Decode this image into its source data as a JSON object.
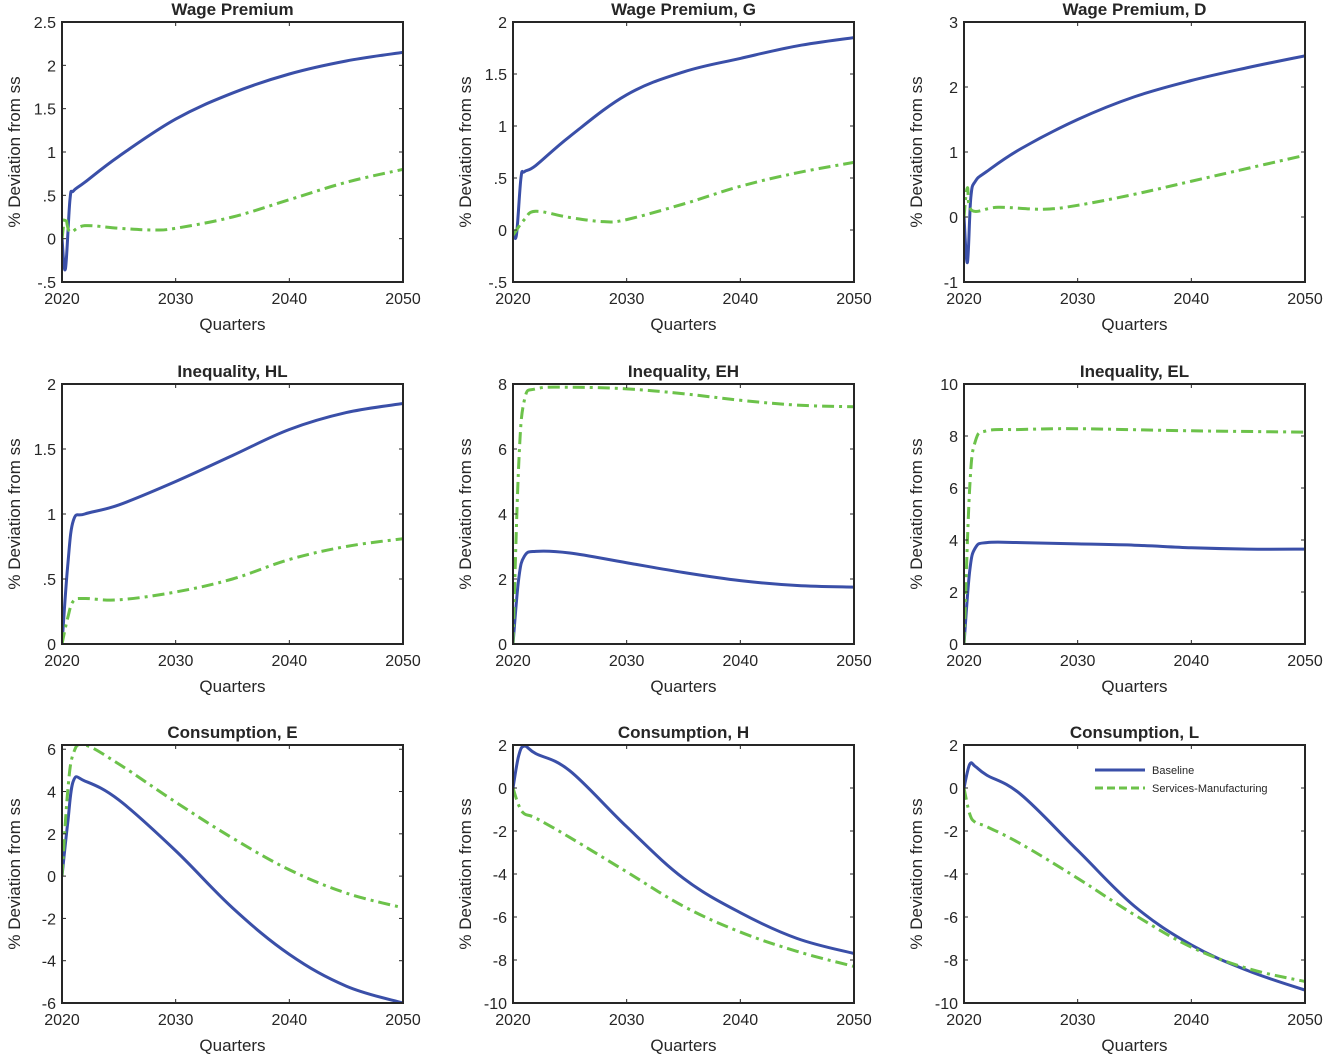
{
  "chart_data": [
    {
      "type": "line",
      "title": "Wage Premium",
      "xlabel": "Quarters",
      "ylabel": "% Deviation from ss",
      "xlim": [
        2020,
        2050
      ],
      "ylim": [
        -0.5,
        2.5
      ],
      "xticks": [
        2020,
        2030,
        2040,
        2050
      ],
      "yticks": [
        -0.5,
        0,
        0.5,
        1,
        1.5,
        2,
        2.5
      ],
      "grid": false,
      "series": [
        {
          "name": "Baseline",
          "x": [
            2020,
            2020.3,
            2020.7,
            2021,
            2022,
            2025,
            2030,
            2035,
            2040,
            2045,
            2050
          ],
          "y": [
            0,
            -0.35,
            0.45,
            0.55,
            0.65,
            0.95,
            1.38,
            1.68,
            1.9,
            2.05,
            2.15
          ]
        },
        {
          "name": "Services-Manufacturing",
          "x": [
            2020,
            2020.3,
            2020.7,
            2022,
            2025,
            2028,
            2030,
            2035,
            2040,
            2045,
            2050
          ],
          "y": [
            0,
            0.25,
            0.08,
            0.15,
            0.12,
            0.1,
            0.12,
            0.25,
            0.45,
            0.65,
            0.8
          ]
        }
      ]
    },
    {
      "type": "line",
      "title": "Wage Premium, G",
      "xlabel": "Quarters",
      "ylabel": "% Deviation from ss",
      "xlim": [
        2020,
        2050
      ],
      "ylim": [
        -0.5,
        2
      ],
      "xticks": [
        2020,
        2030,
        2040,
        2050
      ],
      "yticks": [
        -0.5,
        0,
        0.5,
        1,
        1.5,
        2
      ],
      "grid": false,
      "series": [
        {
          "name": "Baseline",
          "x": [
            2020,
            2020.3,
            2020.7,
            2021,
            2022,
            2025,
            2030,
            2035,
            2040,
            2045,
            2050
          ],
          "y": [
            0,
            -0.05,
            0.5,
            0.56,
            0.62,
            0.9,
            1.3,
            1.52,
            1.65,
            1.77,
            1.85
          ]
        },
        {
          "name": "Services-Manufacturing",
          "x": [
            2020,
            2021,
            2022,
            2025,
            2028,
            2030,
            2035,
            2040,
            2045,
            2050
          ],
          "y": [
            -0.05,
            0.1,
            0.18,
            0.12,
            0.08,
            0.1,
            0.25,
            0.42,
            0.55,
            0.65
          ]
        }
      ]
    },
    {
      "type": "line",
      "title": "Wage Premium, D",
      "xlabel": "Quarters",
      "ylabel": "% Deviation from ss",
      "xlim": [
        2020,
        2050
      ],
      "ylim": [
        -1,
        3
      ],
      "xticks": [
        2020,
        2030,
        2040,
        2050
      ],
      "yticks": [
        -1,
        0,
        1,
        2,
        3
      ],
      "grid": false,
      "series": [
        {
          "name": "Baseline",
          "x": [
            2020,
            2020.3,
            2020.6,
            2021,
            2022,
            2025,
            2030,
            2035,
            2040,
            2045,
            2050
          ],
          "y": [
            0,
            -0.7,
            0.3,
            0.55,
            0.7,
            1.05,
            1.5,
            1.85,
            2.1,
            2.3,
            2.48
          ]
        },
        {
          "name": "Services-Manufacturing",
          "x": [
            2020,
            2020.3,
            2020.7,
            2023,
            2027,
            2030,
            2035,
            2040,
            2045,
            2050
          ],
          "y": [
            0,
            0.45,
            0.1,
            0.15,
            0.12,
            0.18,
            0.35,
            0.55,
            0.75,
            0.95
          ]
        }
      ]
    },
    {
      "type": "line",
      "title": "Inequality, HL",
      "xlabel": "Quarters",
      "ylabel": "% Deviation from ss",
      "xlim": [
        2020,
        2050
      ],
      "ylim": [
        0,
        2
      ],
      "xticks": [
        2020,
        2030,
        2040,
        2050
      ],
      "yticks": [
        0,
        0.5,
        1,
        1.5,
        2
      ],
      "grid": false,
      "series": [
        {
          "name": "Baseline",
          "x": [
            2020,
            2020.5,
            2021,
            2022,
            2025,
            2030,
            2035,
            2040,
            2045,
            2050
          ],
          "y": [
            0,
            0.6,
            0.95,
            1.0,
            1.07,
            1.25,
            1.45,
            1.65,
            1.78,
            1.85
          ]
        },
        {
          "name": "Services-Manufacturing",
          "x": [
            2020,
            2020.5,
            2021,
            2022,
            2025,
            2030,
            2035,
            2040,
            2045,
            2050
          ],
          "y": [
            0,
            0.2,
            0.33,
            0.35,
            0.34,
            0.4,
            0.5,
            0.65,
            0.75,
            0.81
          ]
        }
      ]
    },
    {
      "type": "line",
      "title": "Inequality, EH",
      "xlabel": "Quarters",
      "ylabel": "% Deviation from ss",
      "xlim": [
        2020,
        2050
      ],
      "ylim": [
        0,
        8
      ],
      "xticks": [
        2020,
        2030,
        2040,
        2050
      ],
      "yticks": [
        0,
        2,
        4,
        6,
        8
      ],
      "grid": false,
      "series": [
        {
          "name": "Baseline",
          "x": [
            2020,
            2020.5,
            2021,
            2022,
            2025,
            2030,
            2035,
            2040,
            2045,
            2050
          ],
          "y": [
            0,
            2.0,
            2.7,
            2.85,
            2.8,
            2.5,
            2.2,
            1.95,
            1.8,
            1.75
          ]
        },
        {
          "name": "Services-Manufacturing",
          "x": [
            2020,
            2020.5,
            2021,
            2022,
            2025,
            2030,
            2035,
            2040,
            2045,
            2050
          ],
          "y": [
            0,
            5.5,
            7.5,
            7.85,
            7.9,
            7.85,
            7.7,
            7.5,
            7.35,
            7.3
          ]
        }
      ]
    },
    {
      "type": "line",
      "title": "Inequality, EL",
      "xlabel": "Quarters",
      "ylabel": "% Deviation from ss",
      "xlim": [
        2020,
        2050
      ],
      "ylim": [
        0,
        10
      ],
      "xticks": [
        2020,
        2030,
        2040,
        2050
      ],
      "yticks": [
        0,
        2,
        4,
        6,
        8,
        10
      ],
      "grid": false,
      "series": [
        {
          "name": "Baseline",
          "x": [
            2020,
            2020.5,
            2021,
            2022,
            2025,
            2030,
            2035,
            2040,
            2045,
            2050
          ],
          "y": [
            0,
            2.8,
            3.7,
            3.9,
            3.9,
            3.85,
            3.8,
            3.7,
            3.65,
            3.65
          ]
        },
        {
          "name": "Services-Manufacturing",
          "x": [
            2020,
            2020.5,
            2021,
            2022,
            2025,
            2030,
            2040,
            2050
          ],
          "y": [
            0,
            6,
            7.8,
            8.2,
            8.25,
            8.28,
            8.2,
            8.15
          ]
        }
      ]
    },
    {
      "type": "line",
      "title": "Consumption, E",
      "xlabel": "Quarters",
      "ylabel": "% Deviation from ss",
      "xlim": [
        2020,
        2050
      ],
      "ylim": [
        -6,
        6.2
      ],
      "xticks": [
        2020,
        2030,
        2040,
        2050
      ],
      "yticks": [
        -6,
        -4,
        -2,
        0,
        2,
        4,
        6
      ],
      "grid": false,
      "series": [
        {
          "name": "Baseline",
          "x": [
            2020,
            2020.5,
            2021,
            2022,
            2025,
            2030,
            2035,
            2040,
            2045,
            2050
          ],
          "y": [
            0,
            2.5,
            4.5,
            4.5,
            3.6,
            1.2,
            -1.5,
            -3.7,
            -5.2,
            -6.0
          ]
        },
        {
          "name": "Services-Manufacturing",
          "x": [
            2020,
            2020.5,
            2021,
            2022,
            2025,
            2030,
            2035,
            2040,
            2045,
            2050
          ],
          "y": [
            0,
            4,
            5.8,
            6.2,
            5.3,
            3.5,
            1.8,
            0.3,
            -0.8,
            -1.5
          ]
        }
      ]
    },
    {
      "type": "line",
      "title": "Consumption, H",
      "xlabel": "Quarters",
      "ylabel": "% Deviation from ss",
      "xlim": [
        2020,
        2050
      ],
      "ylim": [
        -10,
        2
      ],
      "xticks": [
        2020,
        2030,
        2040,
        2050
      ],
      "yticks": [
        -10,
        -8,
        -6,
        -4,
        -2,
        0,
        2
      ],
      "grid": false,
      "series": [
        {
          "name": "Baseline",
          "x": [
            2020,
            2020.5,
            2021,
            2022,
            2025,
            2030,
            2035,
            2040,
            2045,
            2050
          ],
          "y": [
            0,
            1.5,
            1.95,
            1.6,
            0.8,
            -1.8,
            -4.2,
            -5.8,
            -7.0,
            -7.7
          ]
        },
        {
          "name": "Services-Manufacturing",
          "x": [
            2020,
            2020.5,
            2021,
            2022,
            2025,
            2030,
            2035,
            2040,
            2045,
            2050
          ],
          "y": [
            0,
            -0.8,
            -1.2,
            -1.4,
            -2.3,
            -3.9,
            -5.5,
            -6.7,
            -7.6,
            -8.3
          ]
        }
      ]
    },
    {
      "type": "line",
      "title": "Consumption, L",
      "xlabel": "Quarters",
      "ylabel": "% Deviation from ss",
      "xlim": [
        2020,
        2050
      ],
      "ylim": [
        -10,
        2
      ],
      "xticks": [
        2020,
        2030,
        2040,
        2050
      ],
      "yticks": [
        -10,
        -8,
        -6,
        -4,
        -2,
        0,
        2
      ],
      "grid": false,
      "legend": "top-right",
      "series": [
        {
          "name": "Baseline",
          "x": [
            2020,
            2020.5,
            2021,
            2022,
            2025,
            2030,
            2035,
            2040,
            2045,
            2050
          ],
          "y": [
            0,
            1.1,
            1.0,
            0.6,
            -0.3,
            -2.9,
            -5.5,
            -7.3,
            -8.5,
            -9.4
          ]
        },
        {
          "name": "Services-Manufacturing",
          "x": [
            2020,
            2020.5,
            2021,
            2022,
            2025,
            2030,
            2035,
            2040,
            2045,
            2050
          ],
          "y": [
            0,
            -1.2,
            -1.6,
            -1.8,
            -2.6,
            -4.2,
            -5.9,
            -7.4,
            -8.4,
            -9.0
          ]
        }
      ]
    }
  ],
  "colors": {
    "Baseline": "#3a4fa8",
    "Services-Manufacturing": "#6cc24a"
  },
  "legend": {
    "items": [
      "Baseline",
      "Services-Manufacturing"
    ]
  }
}
